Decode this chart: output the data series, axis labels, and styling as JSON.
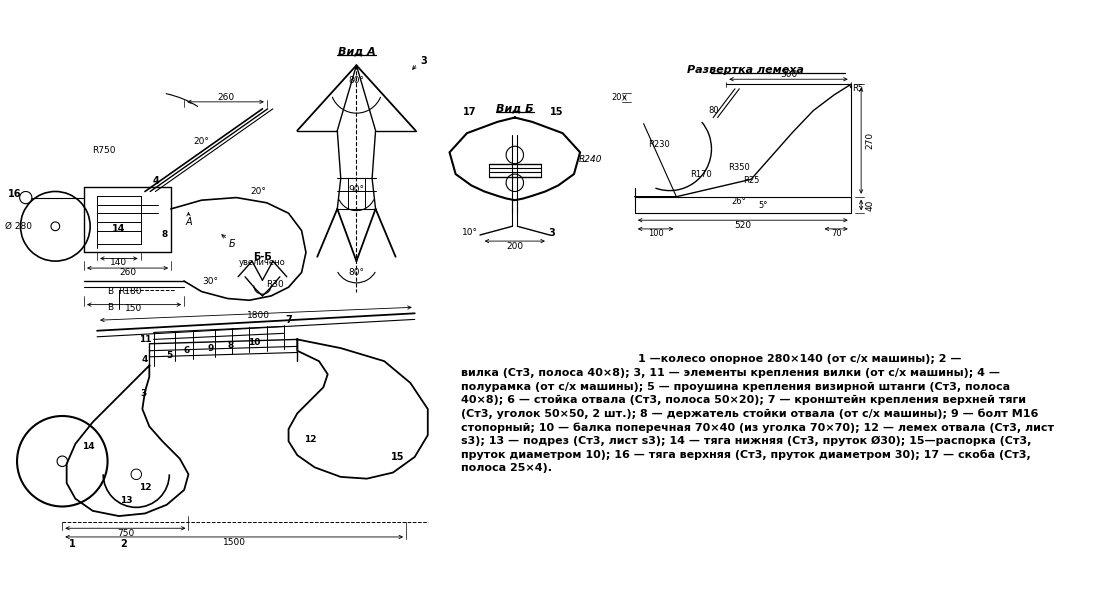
{
  "bg_color": "#ffffff",
  "figsize": [
    11.11,
    6.04
  ],
  "dpi": 100,
  "text_line1": "1 —колесо опорное 280×140 (от с/х машины); 2 —",
  "text_lines": [
    "вилка (Ст3, полоса 40×8); 3, 11 — элементы крепления вилки (от с/х машины); 4 —",
    "полурамка (от с/х машины); 5 — проушина крепления визирной штанги (Ст3, полоса",
    "40×8); 6 — стойка отвала (Ст3, полоса 50×20); 7 — кронштейн крепления верхней тяги",
    "(Ст3, уголок 50×50, 2 шт.); 8 — держатель стойки отвала (от с/х машины); 9 — болт М16",
    "стопорный; 10 — балка поперечная 70×40 (из уголка 70×70); 12 — лемех отвала (Ст3, лист",
    "s3); 13 — подрез (Ст3, лист s3); 14 — тяга нижняя (Ст3, пруток Ø30); 15—распорка (Ст3,",
    "пруток диаметром 10); 16 — тяга верхняя (Ст3, пруток диаметром 30); 17 — скоба (Ст3,",
    "полоса 25×4)."
  ],
  "vid_A": "Вид A",
  "vid_B": "Вид Б",
  "razvyortka": "Развертка лемеха",
  "BB_label": "Б-Б",
  "BB_sub": "увеличено"
}
